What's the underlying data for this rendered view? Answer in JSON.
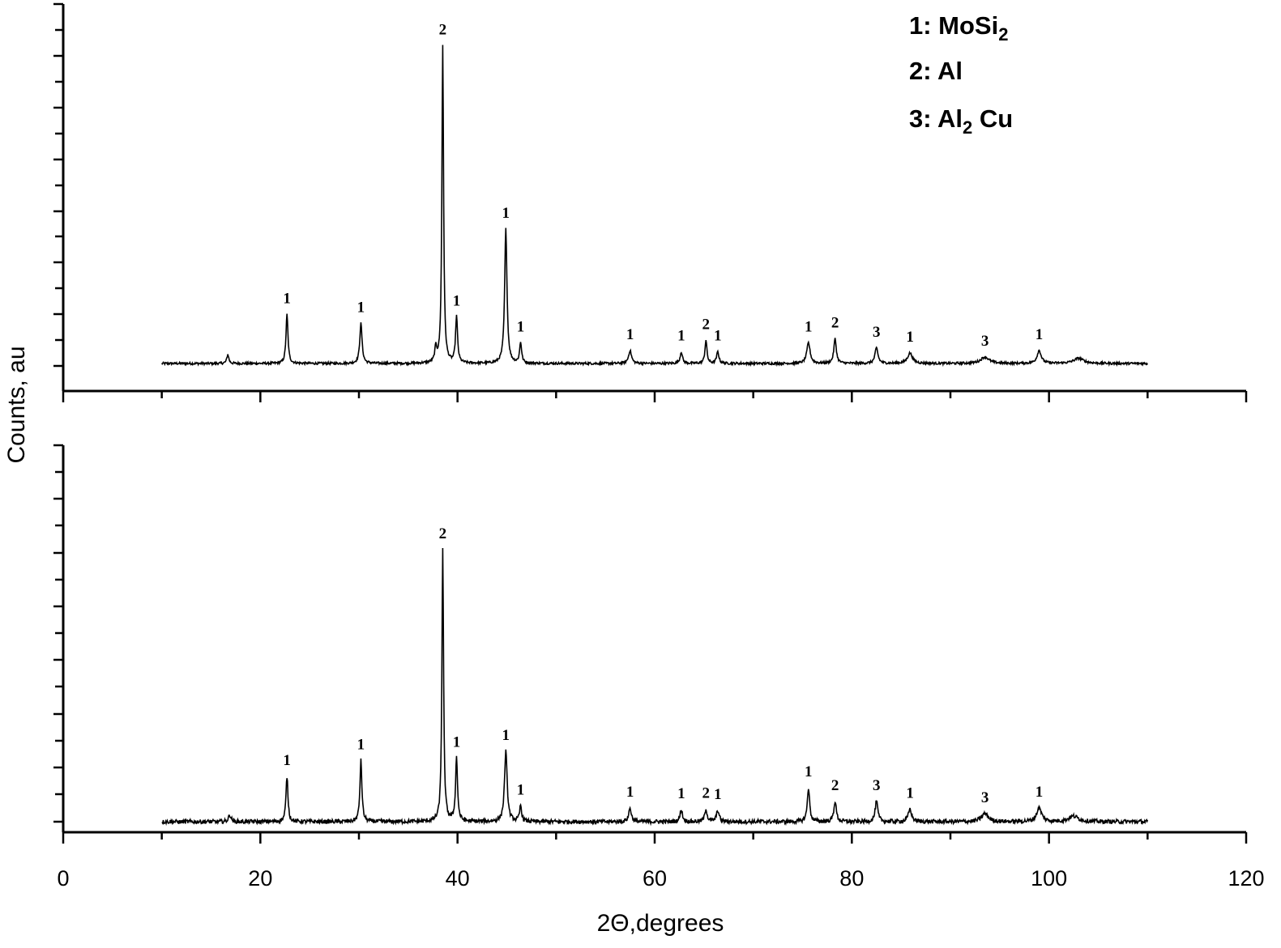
{
  "chart_data": [
    {
      "type": "line",
      "panel": "top",
      "xlim": [
        0,
        120
      ],
      "xlabel": "2Θ,degrees",
      "ylabel": "Counts, au",
      "y_ticks_labeled": false,
      "baseline": 1.0,
      "ymax": 13.5,
      "peaks": [
        {
          "x": 16.7,
          "h": 0.35,
          "w": 0.12
        },
        {
          "x": 22.7,
          "h": 1.9,
          "w": 0.12,
          "label": "1"
        },
        {
          "x": 30.2,
          "h": 1.55,
          "w": 0.14,
          "label": "1"
        },
        {
          "x": 37.8,
          "h": 0.55,
          "w": 0.12
        },
        {
          "x": 38.5,
          "h": 12.3,
          "w": 0.1,
          "label": "2"
        },
        {
          "x": 39.9,
          "h": 1.8,
          "w": 0.12,
          "label": "1"
        },
        {
          "x": 44.9,
          "h": 5.2,
          "w": 0.14,
          "label": "1"
        },
        {
          "x": 46.4,
          "h": 0.8,
          "w": 0.12,
          "label": "1"
        },
        {
          "x": 57.5,
          "h": 0.5,
          "w": 0.18,
          "label": "1"
        },
        {
          "x": 62.7,
          "h": 0.45,
          "w": 0.14,
          "label": "1"
        },
        {
          "x": 65.2,
          "h": 0.9,
          "w": 0.12,
          "label": "2"
        },
        {
          "x": 66.4,
          "h": 0.45,
          "w": 0.14,
          "label": "1"
        },
        {
          "x": 75.6,
          "h": 0.8,
          "w": 0.2,
          "label": "1"
        },
        {
          "x": 78.3,
          "h": 0.95,
          "w": 0.15,
          "label": "2"
        },
        {
          "x": 82.5,
          "h": 0.6,
          "w": 0.18,
          "label": "3"
        },
        {
          "x": 85.9,
          "h": 0.4,
          "w": 0.3,
          "label": "1"
        },
        {
          "x": 93.5,
          "h": 0.25,
          "w": 0.5,
          "label": "3"
        },
        {
          "x": 99.0,
          "h": 0.5,
          "w": 0.25,
          "label": "1"
        },
        {
          "x": 103.0,
          "h": 0.2,
          "w": 0.6
        }
      ]
    },
    {
      "type": "line",
      "panel": "bottom",
      "xlim": [
        0,
        120
      ],
      "xlabel": "2Θ,degrees",
      "ylabel": "Counts, au",
      "y_ticks_labeled": false,
      "baseline": 1.0,
      "ymax": 8.5,
      "peaks": [
        {
          "x": 16.9,
          "h": 0.15,
          "w": 0.15
        },
        {
          "x": 22.7,
          "h": 1.0,
          "w": 0.12,
          "label": "1"
        },
        {
          "x": 30.2,
          "h": 1.35,
          "w": 0.12,
          "label": "1"
        },
        {
          "x": 38.5,
          "h": 6.0,
          "w": 0.1,
          "label": "2"
        },
        {
          "x": 39.9,
          "h": 1.4,
          "w": 0.12,
          "label": "1"
        },
        {
          "x": 44.9,
          "h": 1.55,
          "w": 0.16,
          "label": "1"
        },
        {
          "x": 46.4,
          "h": 0.35,
          "w": 0.12,
          "label": "1"
        },
        {
          "x": 57.5,
          "h": 0.3,
          "w": 0.16,
          "label": "1"
        },
        {
          "x": 62.7,
          "h": 0.27,
          "w": 0.14,
          "label": "1"
        },
        {
          "x": 65.2,
          "h": 0.28,
          "w": 0.14,
          "label": "2"
        },
        {
          "x": 66.4,
          "h": 0.25,
          "w": 0.16,
          "label": "1"
        },
        {
          "x": 75.6,
          "h": 0.75,
          "w": 0.14,
          "label": "1"
        },
        {
          "x": 78.3,
          "h": 0.45,
          "w": 0.15,
          "label": "2"
        },
        {
          "x": 82.5,
          "h": 0.45,
          "w": 0.16,
          "label": "3"
        },
        {
          "x": 85.9,
          "h": 0.28,
          "w": 0.2,
          "label": "1"
        },
        {
          "x": 93.5,
          "h": 0.18,
          "w": 0.4,
          "label": "3"
        },
        {
          "x": 99.0,
          "h": 0.3,
          "w": 0.3,
          "label": "1"
        },
        {
          "x": 102.5,
          "h": 0.12,
          "w": 0.6
        }
      ]
    }
  ],
  "x_ticks": [
    0,
    20,
    40,
    60,
    80,
    100,
    120
  ],
  "x_tick_labels": [
    "0",
    "20",
    "40",
    "60",
    "80",
    "100",
    "120"
  ],
  "legend": [
    {
      "prefix": "1: MoSi",
      "sub": "2",
      "suffix": ""
    },
    {
      "prefix": "2: Al",
      "sub": "",
      "suffix": ""
    },
    {
      "prefix": "3: Al",
      "sub": "2",
      "suffix": " Cu"
    }
  ],
  "axis": {
    "xlabel": "2Θ,degrees",
    "ylabel": "Counts, au"
  },
  "colors": {
    "line": "#000000",
    "background": "#ffffff"
  }
}
